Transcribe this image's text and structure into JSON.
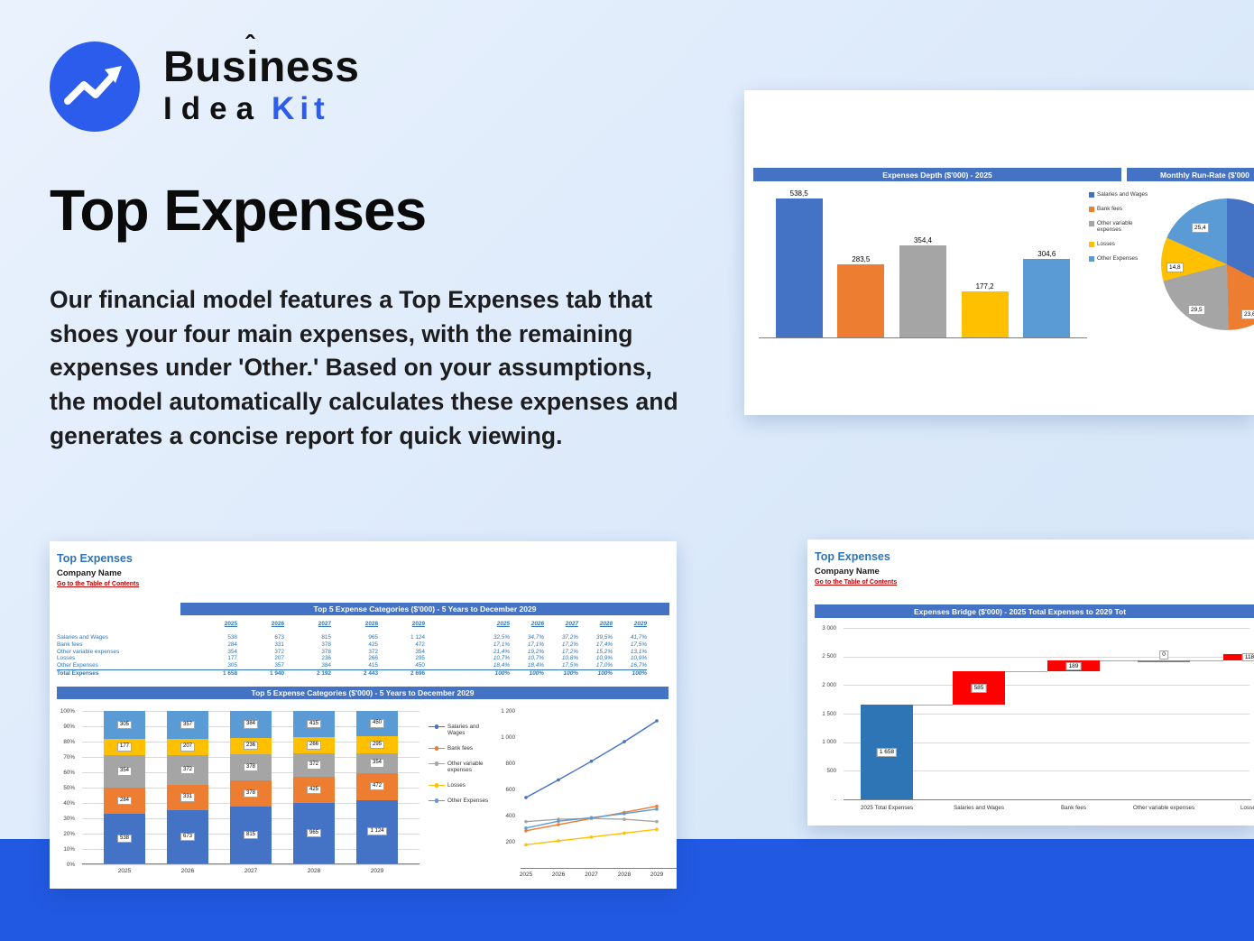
{
  "page": {
    "background": "#dbe9fa",
    "colors": {
      "accent_blue": "#2c5cec",
      "band_blue": "#2159e2",
      "excel_header_blue": "#4472c4",
      "sheet_title_blue": "#2e75b6",
      "toc_link_red": "#c00000",
      "waterfall_increase_red": "#ff0000",
      "waterfall_start_blue": "#2e75b6"
    }
  },
  "logo": {
    "brand": "Business",
    "caret": "ˆ",
    "sub_a": "Idea",
    "sub_b": "Kit"
  },
  "hero": {
    "title": "Top Expenses",
    "body": "Our financial model features a Top Expenses tab that shoes your four main expenses, with the remaining expenses under 'Other.' Based on your assumptions, the model automatically calculates these expenses and generates a concise report for quick viewing."
  },
  "sheet": {
    "title": "Top Expenses",
    "company": "Company Name",
    "toc_link": "Go to the Table of Contents"
  },
  "chart_data": [
    {
      "id": "expenses-depth-2025",
      "type": "bar",
      "title": "Expenses Depth ($'000) - 2025",
      "categories": [
        "Salaries and Wages",
        "Bank fees",
        "Other variable expenses",
        "Losses",
        "Other Expenses"
      ],
      "values": [
        538.5,
        283.5,
        354.4,
        177.2,
        304.6
      ],
      "labels": [
        "538,5",
        "283,5",
        "354,4",
        "177,2",
        "304,6"
      ],
      "colors": [
        "#4472c4",
        "#ed7d31",
        "#a5a5a5",
        "#ffc000",
        "#5b9bd5"
      ],
      "ylim": [
        0,
        600
      ],
      "legend": [
        "Salaries and Wages",
        "Bank fees",
        "Other variable expenses",
        "Losses",
        "Other Expenses"
      ],
      "legend_position": "right",
      "grid": false
    },
    {
      "id": "monthly-run-rate",
      "type": "pie",
      "title": "Monthly Run-Rate ($'000",
      "slices": [
        {
          "name": "Salaries and Wages",
          "value": 44.9,
          "label": "44,9",
          "color": "#4472c4"
        },
        {
          "name": "Bank fees",
          "value": 23.6,
          "label": "23,6",
          "color": "#ed7d31"
        },
        {
          "name": "Other variable expenses",
          "value": 29.5,
          "label": "29,5",
          "color": "#a5a5a5"
        },
        {
          "name": "Losses",
          "value": 14.8,
          "label": "14,8",
          "color": "#ffc000"
        },
        {
          "name": "Other Expenses",
          "value": 25.4,
          "label": "25,4",
          "color": "#5b9bd5"
        }
      ]
    },
    {
      "id": "top5-table",
      "type": "table",
      "title": "Top 5 Expense Categories ($'000) - 5 Years to December 2029",
      "years": [
        "2025",
        "2026",
        "2027",
        "2028",
        "2029"
      ],
      "rows": [
        {
          "name": "Salaries and Wages",
          "values": [
            "538",
            "673",
            "815",
            "965",
            "1 124"
          ],
          "pcts": [
            "32,5%",
            "34,7%",
            "37,2%",
            "39,5%",
            "41,7%"
          ]
        },
        {
          "name": "Bank fees",
          "values": [
            "284",
            "331",
            "378",
            "425",
            "472"
          ],
          "pcts": [
            "17,1%",
            "17,1%",
            "17,2%",
            "17,4%",
            "17,5%"
          ]
        },
        {
          "name": "Other variable expenses",
          "values": [
            "354",
            "372",
            "378",
            "372",
            "354"
          ],
          "pcts": [
            "21,4%",
            "19,2%",
            "17,2%",
            "15,2%",
            "13,1%"
          ]
        },
        {
          "name": "Losses",
          "values": [
            "177",
            "207",
            "236",
            "266",
            "295"
          ],
          "pcts": [
            "10,7%",
            "10,7%",
            "10,8%",
            "10,9%",
            "10,9%"
          ]
        },
        {
          "name": "Other Expenses",
          "values": [
            "305",
            "357",
            "384",
            "415",
            "450"
          ],
          "pcts": [
            "18,4%",
            "18,4%",
            "17,5%",
            "17,0%",
            "16,7%"
          ]
        }
      ],
      "total_row": {
        "name": "Total Expenses",
        "values": [
          "1 658",
          "1 940",
          "2 192",
          "2 443",
          "2 696"
        ],
        "pcts": [
          "100%",
          "100%",
          "100%",
          "100%",
          "100%"
        ]
      }
    },
    {
      "id": "top5-stacked",
      "type": "bar",
      "subtype": "stacked-100",
      "title": "Top 5 Expense Categories ($'000) - 5 Years to December 2029",
      "categories": [
        "2025",
        "2026",
        "2027",
        "2028",
        "2029"
      ],
      "series": [
        {
          "name": "Salaries and Wages",
          "color": "#4472c4",
          "values": [
            538,
            673,
            815,
            965,
            1124
          ],
          "labels": [
            "538",
            "673",
            "815",
            "965",
            "1 124"
          ]
        },
        {
          "name": "Bank fees",
          "color": "#ed7d31",
          "values": [
            284,
            331,
            378,
            425,
            472
          ],
          "labels": [
            "284",
            "331",
            "378",
            "425",
            "472"
          ]
        },
        {
          "name": "Other variable expenses",
          "color": "#a5a5a5",
          "values": [
            354,
            372,
            378,
            372,
            354
          ],
          "labels": [
            "354",
            "372",
            "378",
            "372",
            "354"
          ]
        },
        {
          "name": "Losses",
          "color": "#ffc000",
          "values": [
            177,
            207,
            236,
            266,
            295
          ],
          "labels": [
            "177",
            "207",
            "236",
            "266",
            "295"
          ]
        },
        {
          "name": "Other Expenses",
          "color": "#5b9bd5",
          "values": [
            305,
            357,
            384,
            415,
            450
          ],
          "labels": [
            "305",
            "357",
            "384",
            "415",
            "450"
          ]
        }
      ],
      "yticks": [
        "100%",
        "90%",
        "80%",
        "70%",
        "60%",
        "50%",
        "40%",
        "30%",
        "20%",
        "10%",
        "0%"
      ],
      "grid": true,
      "legend_position": "right"
    },
    {
      "id": "top5-lines",
      "type": "line",
      "x": [
        "2025",
        "2026",
        "2027",
        "2028",
        "2029"
      ],
      "ylim": [
        0,
        1200
      ],
      "yticks": [
        {
          "label": "1 200",
          "v": 1200
        },
        {
          "label": "1 000",
          "v": 1000
        },
        {
          "label": "800",
          "v": 800
        },
        {
          "label": "600",
          "v": 600
        },
        {
          "label": "400",
          "v": 400
        },
        {
          "label": "200",
          "v": 200
        }
      ],
      "series": [
        {
          "name": "Salaries and Wages",
          "color": "#4472c4",
          "values": [
            538,
            673,
            815,
            965,
            1124
          ]
        },
        {
          "name": "Bank fees",
          "color": "#ed7d31",
          "values": [
            284,
            331,
            378,
            425,
            472
          ]
        },
        {
          "name": "Other variable expenses",
          "color": "#a5a5a5",
          "values": [
            354,
            372,
            378,
            372,
            354
          ]
        },
        {
          "name": "Losses",
          "color": "#ffc000",
          "values": [
            177,
            207,
            236,
            266,
            295
          ]
        },
        {
          "name": "Other Expenses",
          "color": "#5b9bd5",
          "values": [
            305,
            357,
            384,
            415,
            450
          ]
        }
      ],
      "grid": false
    },
    {
      "id": "expenses-bridge",
      "type": "bar",
      "subtype": "waterfall",
      "title": "Expenses Bridge ($'000) - 2025 Total Expenses to 2029 Tot",
      "categories": [
        "2025 Total Expenses",
        "Salaries and Wages",
        "Bank fees",
        "Other variable expenses",
        "Losses"
      ],
      "bars": [
        {
          "label": "1 658",
          "start": 0,
          "end": 1658,
          "color": "#2e75b6"
        },
        {
          "label": "585",
          "start": 1658,
          "end": 2243,
          "color": "#ff0000"
        },
        {
          "label": "189",
          "start": 2243,
          "end": 2432,
          "color": "#ff0000"
        },
        {
          "label": "0",
          "start": 2432,
          "end": 2432,
          "color": "#7f7f7f"
        },
        {
          "label": "118",
          "start": 2432,
          "end": 2550,
          "color": "#ff0000"
        }
      ],
      "ylim": [
        0,
        3000
      ],
      "yticks": [
        {
          "label": "3 000",
          "v": 3000
        },
        {
          "label": "2 500",
          "v": 2500
        },
        {
          "label": "2 000",
          "v": 2000
        },
        {
          "label": "1 500",
          "v": 1500
        },
        {
          "label": "1 000",
          "v": 1000
        },
        {
          "label": "500",
          "v": 500
        },
        {
          "label": "-",
          "v": 0
        }
      ],
      "grid": true
    }
  ]
}
